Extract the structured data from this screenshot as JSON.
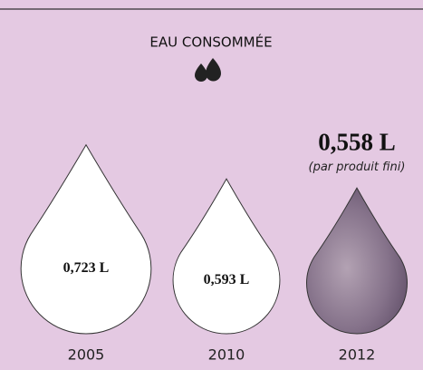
{
  "chart_data": {
    "type": "drop",
    "title": "EAU CONSOMMÉE",
    "categories": [
      "2005",
      "2010",
      "2012"
    ],
    "values": [
      0.723,
      0.593,
      0.558
    ],
    "value_labels": [
      "0,723 L",
      "0,593 L",
      "0,558 L"
    ],
    "annotation": "(par produit fini)",
    "colors": [
      "#ffffff",
      "#ffffff",
      "#7d6b84"
    ]
  }
}
